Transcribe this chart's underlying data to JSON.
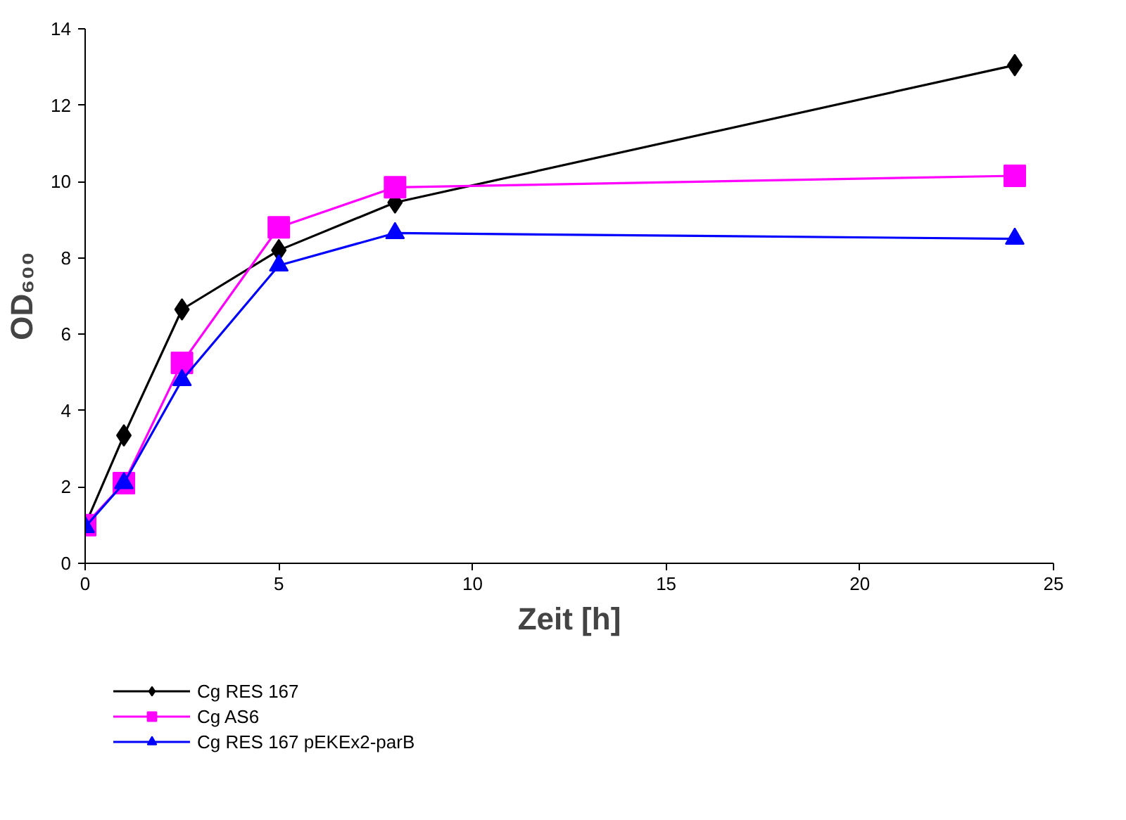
{
  "chart_data": {
    "type": "line",
    "xlabel": "Zeit [h]",
    "ylabel": "OD₆₀₀",
    "x": [
      0,
      1,
      2.5,
      5,
      8,
      24
    ],
    "series": [
      {
        "name": "Cg RES 167",
        "color": "#000000",
        "marker": "diamond",
        "values": [
          1,
          3.35,
          6.65,
          8.2,
          9.45,
          13.05
        ]
      },
      {
        "name": "Cg AS6",
        "color": "#ff00ff",
        "marker": "square",
        "values": [
          1,
          2.1,
          5.25,
          8.8,
          9.85,
          10.15
        ]
      },
      {
        "name": "Cg RES 167 pEKEx2-parB",
        "color": "#0000ff",
        "marker": "triangle",
        "values": [
          0.95,
          2.1,
          4.8,
          7.8,
          8.65,
          8.5
        ]
      }
    ],
    "xlim": [
      0,
      25
    ],
    "xticks": [
      0,
      5,
      10,
      15,
      20,
      25
    ],
    "ylim": [
      0,
      14
    ],
    "yticks": [
      0,
      2,
      4,
      6,
      8,
      10,
      12,
      14
    ],
    "grid": false,
    "legend": "bottom left",
    "line_style": "solid"
  }
}
